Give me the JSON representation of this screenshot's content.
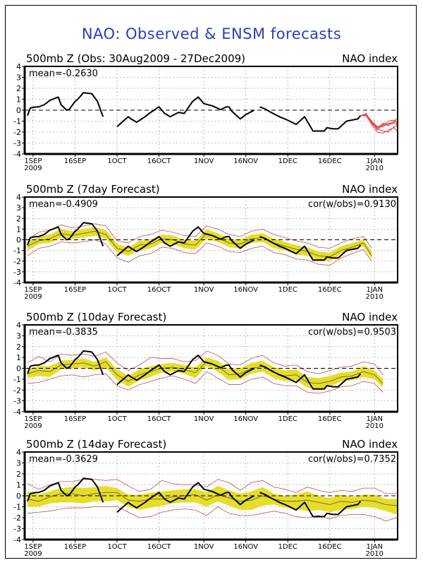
{
  "title": "NAO: Observed & ENSM forecasts",
  "chart_data": [
    {
      "type": "line",
      "title": "500mb Z (Obs: 30Aug2009 - 27Dec2009)",
      "right_label": "NAO index",
      "annotation_left": "mean=-0.2630",
      "annotation_right": "",
      "ylim": [
        -4,
        4
      ],
      "yticks": [
        "4",
        "3",
        "2",
        "1",
        "0",
        "-1",
        "-2",
        "-3",
        "-4"
      ],
      "xlim_days": [
        0,
        132
      ],
      "xticks": [
        {
          "day": 2,
          "label": "1SEP",
          "sub": "2009"
        },
        {
          "day": 17,
          "label": "16SEP",
          "sub": ""
        },
        {
          "day": 32,
          "label": "1OCT",
          "sub": ""
        },
        {
          "day": 47,
          "label": "16OCT",
          "sub": ""
        },
        {
          "day": 63,
          "label": "1NOV",
          "sub": ""
        },
        {
          "day": 78,
          "label": "16NOV",
          "sub": ""
        },
        {
          "day": 93,
          "label": "1DEC",
          "sub": ""
        },
        {
          "day": 108,
          "label": "16DEC",
          "sub": ""
        },
        {
          "day": 124,
          "label": "1JAN",
          "sub": "2010"
        }
      ],
      "grid": true,
      "observed": [
        [
          [
            0,
            -0.5
          ],
          [
            1,
            0.2
          ],
          [
            3,
            0.3
          ],
          [
            4,
            0.3
          ],
          [
            6,
            0.5
          ],
          [
            8,
            0.9
          ],
          [
            10,
            1.1
          ],
          [
            11,
            1.2
          ],
          [
            12,
            0.5
          ],
          [
            14,
            0.0
          ],
          [
            15,
            0.1
          ],
          [
            17,
            0.8
          ],
          [
            18,
            1.0
          ],
          [
            20,
            1.6
          ],
          [
            23,
            1.5
          ],
          [
            25,
            0.8
          ],
          [
            27,
            -0.6
          ]
        ],
        [
          [
            32,
            -1.5
          ],
          [
            36,
            -0.6
          ],
          [
            37,
            -0.8
          ],
          [
            39,
            -1.1
          ],
          [
            42,
            -0.6
          ],
          [
            44,
            -0.2
          ],
          [
            47,
            0.3
          ],
          [
            49,
            -0.3
          ],
          [
            51,
            -0.6
          ],
          [
            54,
            -0.2
          ],
          [
            56,
            -0.3
          ],
          [
            59,
            0.8
          ],
          [
            61,
            1.2
          ],
          [
            63,
            0.6
          ],
          [
            66,
            0.4
          ],
          [
            69,
            0.05
          ],
          [
            71,
            0.3
          ],
          [
            72,
            0.3
          ],
          [
            73,
            -0.1
          ],
          [
            76,
            -0.8
          ],
          [
            78,
            -0.4
          ],
          [
            81,
            0.0
          ]
        ],
        [
          [
            83,
            0.3
          ],
          [
            85,
            0.1
          ],
          [
            87,
            -0.2
          ],
          [
            90,
            -0.6
          ],
          [
            92,
            -0.8
          ],
          [
            96,
            -1.3
          ],
          [
            99,
            -0.6
          ],
          [
            102,
            -1.9
          ],
          [
            106,
            -1.9
          ],
          [
            107,
            -1.6
          ],
          [
            109,
            -1.7
          ],
          [
            111,
            -1.7
          ],
          [
            114,
            -1.0
          ],
          [
            116,
            -0.9
          ],
          [
            118,
            -0.8
          ],
          [
            119,
            -0.5
          ]
        ]
      ],
      "ensemble_members": [
        [
          [
            119,
            -0.5
          ],
          [
            121,
            -0.4
          ],
          [
            123,
            -1.0
          ],
          [
            125,
            -1.6
          ],
          [
            127,
            -1.5
          ],
          [
            129,
            -1.2
          ],
          [
            131,
            -1.1
          ],
          [
            132,
            -1.0
          ]
        ],
        [
          [
            119,
            -0.5
          ],
          [
            121,
            -0.5
          ],
          [
            123,
            -1.1
          ],
          [
            125,
            -1.8
          ],
          [
            127,
            -1.3
          ],
          [
            129,
            -1.4
          ],
          [
            131,
            -1.0
          ],
          [
            132,
            -0.8
          ]
        ],
        [
          [
            119,
            -0.5
          ],
          [
            121,
            -0.3
          ],
          [
            123,
            -1.2
          ],
          [
            125,
            -1.7
          ],
          [
            127,
            -1.9
          ],
          [
            129,
            -2.0
          ],
          [
            131,
            -1.5
          ],
          [
            132,
            -1.4
          ]
        ],
        [
          [
            119,
            -0.5
          ],
          [
            121,
            -0.4
          ],
          [
            123,
            -1.0
          ],
          [
            125,
            -1.5
          ],
          [
            127,
            -1.4
          ],
          [
            129,
            -1.0
          ],
          [
            131,
            -0.9
          ],
          [
            132,
            -1.2
          ]
        ],
        [
          [
            119,
            -0.5
          ],
          [
            121,
            -0.5
          ],
          [
            123,
            -1.3
          ],
          [
            125,
            -2.0
          ],
          [
            127,
            -2.1
          ],
          [
            129,
            -1.8
          ],
          [
            131,
            -1.6
          ],
          [
            132,
            -1.9
          ]
        ],
        [
          [
            119,
            -0.5
          ],
          [
            121,
            -0.4
          ],
          [
            123,
            -1.1
          ],
          [
            125,
            -1.6
          ],
          [
            127,
            -1.2
          ],
          [
            129,
            -1.3
          ],
          [
            131,
            -1.2
          ],
          [
            132,
            -1.3
          ]
        ]
      ],
      "colors": {
        "observed": "#000000",
        "ensemble": "#e05050"
      }
    },
    {
      "type": "line",
      "title": "500mb Z (7day Forecast)",
      "right_label": "NAO index",
      "annotation_left": "mean=-0.4909",
      "annotation_right": "cor(w/obs)=0.9130",
      "ylim": [
        -4,
        4
      ],
      "xlim_days": [
        0,
        132
      ],
      "grid": true,
      "forecast": {
        "days": [
          0,
          4,
          8,
          12,
          16,
          20,
          24,
          28,
          32,
          36,
          40,
          44,
          48,
          52,
          56,
          60,
          64,
          68,
          72,
          76,
          80,
          84,
          88,
          92,
          96,
          100,
          104,
          108,
          112,
          116,
          120,
          123
        ],
        "mean": [
          -0.6,
          -0.1,
          0.1,
          0.6,
          0.4,
          0.6,
          0.8,
          0.5,
          -0.8,
          -1.1,
          -0.5,
          -0.4,
          0.1,
          0.0,
          -0.4,
          -0.5,
          0.6,
          0.2,
          -0.3,
          -0.4,
          0.1,
          0.2,
          -0.3,
          -0.6,
          -0.9,
          -1.1,
          -1.5,
          -1.6,
          -1.0,
          -0.7,
          -0.3,
          -1.5
        ],
        "band_low": [
          -1.0,
          -0.4,
          -0.3,
          0.2,
          0.1,
          0.2,
          0.4,
          0.1,
          -1.2,
          -1.5,
          -1.0,
          -0.8,
          -0.3,
          -0.4,
          -0.8,
          -0.9,
          0.1,
          -0.2,
          -0.7,
          -0.8,
          -0.3,
          -0.2,
          -0.8,
          -1.0,
          -1.4,
          -1.5,
          -1.9,
          -2.0,
          -1.3,
          -1.0,
          -0.6,
          -1.8
        ],
        "band_high": [
          -0.2,
          0.3,
          0.5,
          1.0,
          0.8,
          1.0,
          1.2,
          0.9,
          -0.4,
          -0.7,
          -0.1,
          0.0,
          0.5,
          0.4,
          0.0,
          -0.1,
          1.0,
          0.6,
          0.1,
          0.0,
          0.5,
          0.6,
          0.1,
          -0.2,
          -0.5,
          -0.7,
          -1.1,
          -1.2,
          -0.6,
          -0.3,
          0.0,
          -1.1
        ],
        "red_low": [
          -1.5,
          -0.8,
          -0.6,
          -0.2,
          -0.3,
          -0.2,
          0.0,
          -0.4,
          -1.7,
          -2.1,
          -1.5,
          -1.3,
          -0.7,
          -0.8,
          -1.2,
          -1.3,
          -0.3,
          -0.6,
          -1.1,
          -1.2,
          -0.8,
          -0.6,
          -1.2,
          -1.4,
          -1.8,
          -1.9,
          -2.3,
          -2.4,
          -1.7,
          -1.3,
          -0.9,
          -2.0
        ],
        "red_high": [
          0.0,
          0.7,
          0.9,
          1.4,
          1.1,
          1.3,
          1.5,
          1.3,
          -0.1,
          -0.3,
          0.3,
          0.5,
          0.9,
          0.7,
          0.4,
          0.3,
          1.3,
          1.0,
          0.5,
          0.3,
          0.8,
          1.0,
          0.5,
          0.2,
          -0.1,
          -0.3,
          -0.7,
          -0.8,
          -0.3,
          0.1,
          0.3,
          -0.8
        ]
      },
      "colors": {
        "observed": "#000000",
        "band": "#e6dd2a",
        "mean": "#666633",
        "spread": "#c0504d"
      }
    },
    {
      "type": "line",
      "title": "500mb Z (10day Forecast)",
      "right_label": "NAO index",
      "annotation_left": "mean=-0.3835",
      "annotation_right": "cor(w/obs)=0.9503",
      "ylim": [
        -4,
        4
      ],
      "xlim_days": [
        0,
        132
      ],
      "grid": true,
      "forecast": {
        "days": [
          0,
          4,
          8,
          12,
          16,
          20,
          24,
          28,
          32,
          36,
          40,
          44,
          48,
          52,
          56,
          60,
          64,
          68,
          72,
          76,
          80,
          84,
          88,
          92,
          96,
          100,
          104,
          108,
          112,
          116,
          120,
          124,
          127
        ],
        "mean": [
          -0.5,
          -0.2,
          -0.3,
          0.3,
          0.4,
          0.5,
          0.2,
          0.6,
          -0.6,
          -1.2,
          -0.6,
          -0.3,
          0.0,
          0.1,
          -0.1,
          -0.4,
          0.6,
          0.2,
          -0.6,
          -0.5,
          0.0,
          0.2,
          -0.4,
          -0.7,
          -0.6,
          -1.3,
          -1.4,
          -1.2,
          -0.8,
          -0.7,
          -0.3,
          -0.6,
          -1.4
        ],
        "band_low": [
          -0.9,
          -0.7,
          -0.8,
          -0.1,
          0.0,
          0.1,
          -0.2,
          0.1,
          -1.1,
          -1.7,
          -1.1,
          -0.8,
          -0.4,
          -0.3,
          -0.5,
          -0.9,
          0.2,
          -0.3,
          -1.1,
          -1.0,
          -0.5,
          -0.3,
          -0.9,
          -1.2,
          -1.1,
          -1.8,
          -1.9,
          -1.7,
          -1.2,
          -1.1,
          -0.8,
          -1.0,
          -1.8
        ],
        "band_high": [
          -0.1,
          0.2,
          0.2,
          0.7,
          0.8,
          0.9,
          0.6,
          1.0,
          -0.1,
          -0.7,
          -0.1,
          0.2,
          0.4,
          0.5,
          0.3,
          0.1,
          1.0,
          0.7,
          -0.1,
          0.0,
          0.5,
          0.7,
          0.1,
          -0.2,
          -0.1,
          -0.8,
          -0.9,
          -0.7,
          -0.4,
          -0.3,
          0.2,
          -0.2,
          -1.0
        ],
        "red_low": [
          -1.4,
          -1.3,
          -1.0,
          -0.7,
          -0.6,
          -0.8,
          -0.6,
          -0.5,
          -1.6,
          -2.0,
          -1.5,
          -1.2,
          -0.9,
          -0.7,
          -1.0,
          -1.4,
          -0.3,
          -0.9,
          -1.5,
          -1.5,
          -1.0,
          -0.8,
          -1.4,
          -1.6,
          -1.6,
          -2.2,
          -2.3,
          -2.1,
          -1.7,
          -1.6,
          -1.2,
          -1.4,
          -2.2
        ],
        "red_high": [
          0.5,
          1.1,
          0.6,
          1.3,
          1.2,
          1.3,
          1.1,
          1.5,
          0.5,
          -0.2,
          0.3,
          1.0,
          0.9,
          0.9,
          0.6,
          0.7,
          1.6,
          1.2,
          0.4,
          0.3,
          0.9,
          1.2,
          0.5,
          0.2,
          0.3,
          -0.3,
          -0.5,
          -0.2,
          0.1,
          0.2,
          0.6,
          0.4,
          -0.6
        ]
      },
      "colors": {
        "observed": "#000000",
        "band": "#e6dd2a",
        "mean": "#666633",
        "spread": "#c0504d"
      }
    },
    {
      "type": "line",
      "title": "500mb Z (14day Forecast)",
      "right_label": "NAO index",
      "annotation_left": "mean=-0.3629",
      "annotation_right": "cor(w/obs)=0.7352",
      "ylim": [
        -4,
        4
      ],
      "xlim_days": [
        0,
        132
      ],
      "grid": true,
      "forecast": {
        "days": [
          0,
          4,
          8,
          12,
          16,
          20,
          24,
          28,
          32,
          36,
          40,
          44,
          48,
          52,
          56,
          60,
          64,
          68,
          72,
          76,
          80,
          84,
          88,
          92,
          96,
          100,
          104,
          108,
          112,
          116,
          120,
          124,
          128,
          132
        ],
        "mean": [
          -0.3,
          -0.5,
          -0.1,
          0.2,
          0.2,
          0.0,
          0.2,
          0.3,
          0.3,
          -0.4,
          -0.5,
          -0.3,
          -0.3,
          -0.1,
          0.0,
          0.1,
          -0.4,
          0.1,
          -0.2,
          -0.5,
          -0.4,
          0.0,
          -0.3,
          -0.5,
          -0.5,
          -0.4,
          -0.6,
          -0.8,
          -0.5,
          -0.6,
          -0.4,
          -0.5,
          -0.8,
          -0.9
        ],
        "band_low": [
          -1.0,
          -1.0,
          -0.7,
          -0.6,
          -0.6,
          -0.7,
          -0.5,
          -0.5,
          -0.4,
          -1.0,
          -1.3,
          -1.1,
          -0.9,
          -0.7,
          -0.6,
          -0.6,
          -1.0,
          -0.5,
          -0.9,
          -1.3,
          -1.3,
          -0.9,
          -0.8,
          -1.1,
          -1.2,
          -1.4,
          -1.3,
          -1.5,
          -1.3,
          -1.2,
          -1.0,
          -1.1,
          -1.4,
          -1.7
        ],
        "band_high": [
          0.4,
          0.1,
          0.4,
          0.7,
          0.8,
          0.7,
          0.8,
          0.9,
          0.7,
          0.1,
          0.1,
          0.3,
          0.4,
          0.5,
          0.6,
          0.6,
          0.3,
          0.9,
          0.5,
          0.2,
          0.4,
          0.8,
          0.2,
          0.0,
          0.1,
          0.4,
          0.0,
          -0.2,
          0.1,
          -0.1,
          0.1,
          0.1,
          -0.3,
          -0.3
        ],
        "red_low": [
          -1.6,
          -1.5,
          -1.4,
          -1.2,
          -1.1,
          -1.1,
          -1.0,
          -1.0,
          -1.0,
          -1.5,
          -2.0,
          -1.9,
          -1.5,
          -1.3,
          -1.2,
          -1.3,
          -1.8,
          -1.0,
          -1.6,
          -1.8,
          -1.8,
          -1.6,
          -1.4,
          -1.6,
          -1.9,
          -2.0,
          -1.8,
          -2.1,
          -1.8,
          -1.7,
          -1.7,
          -1.9,
          -2.3,
          -2.0
        ],
        "red_high": [
          1.1,
          0.6,
          1.0,
          1.3,
          1.3,
          1.5,
          1.5,
          1.4,
          1.5,
          0.9,
          0.4,
          0.6,
          1.4,
          1.1,
          1.0,
          1.0,
          0.8,
          1.5,
          1.2,
          0.5,
          1.2,
          1.4,
          0.8,
          0.6,
          0.3,
          0.8,
          0.5,
          0.3,
          0.5,
          0.4,
          0.7,
          0.7,
          0.2,
          0.2
        ]
      },
      "colors": {
        "observed": "#000000",
        "band": "#e6dd2a",
        "mean": "#666633",
        "spread": "#c0504d"
      }
    }
  ]
}
